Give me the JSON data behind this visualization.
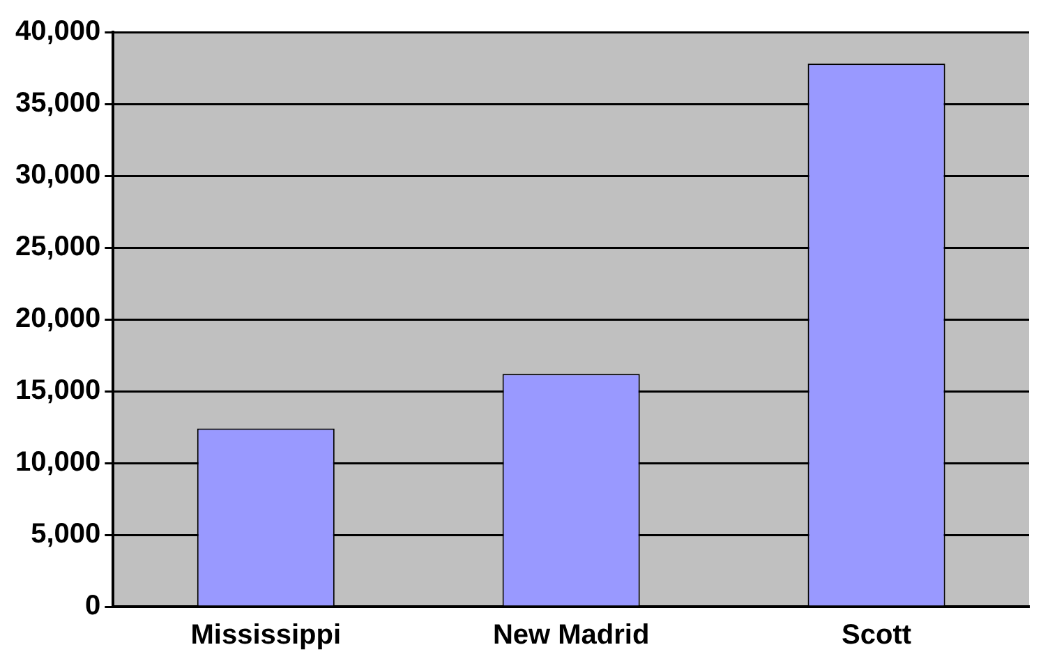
{
  "chart_data": {
    "type": "bar",
    "categories": [
      "Mississippi",
      "New Madrid",
      "Scott"
    ],
    "values": [
      12400,
      16200,
      37800
    ],
    "color": "#9999ff",
    "ylim": [
      0,
      40000
    ],
    "yticks": [
      0,
      {
        "value": 5000,
        "label": "5,000"
      },
      {
        "value": 10000,
        "label": "10,000"
      },
      {
        "value": 15000,
        "label": "15,000"
      },
      {
        "value": 20000,
        "label": "20,000"
      },
      {
        "value": 25000,
        "label": "25,000"
      },
      {
        "value": 30000,
        "label": "30,000"
      },
      {
        "value": 35000,
        "label": "35,000"
      },
      {
        "value": 40000,
        "label": "40,000"
      }
    ],
    "grid": "y",
    "legend": false
  }
}
